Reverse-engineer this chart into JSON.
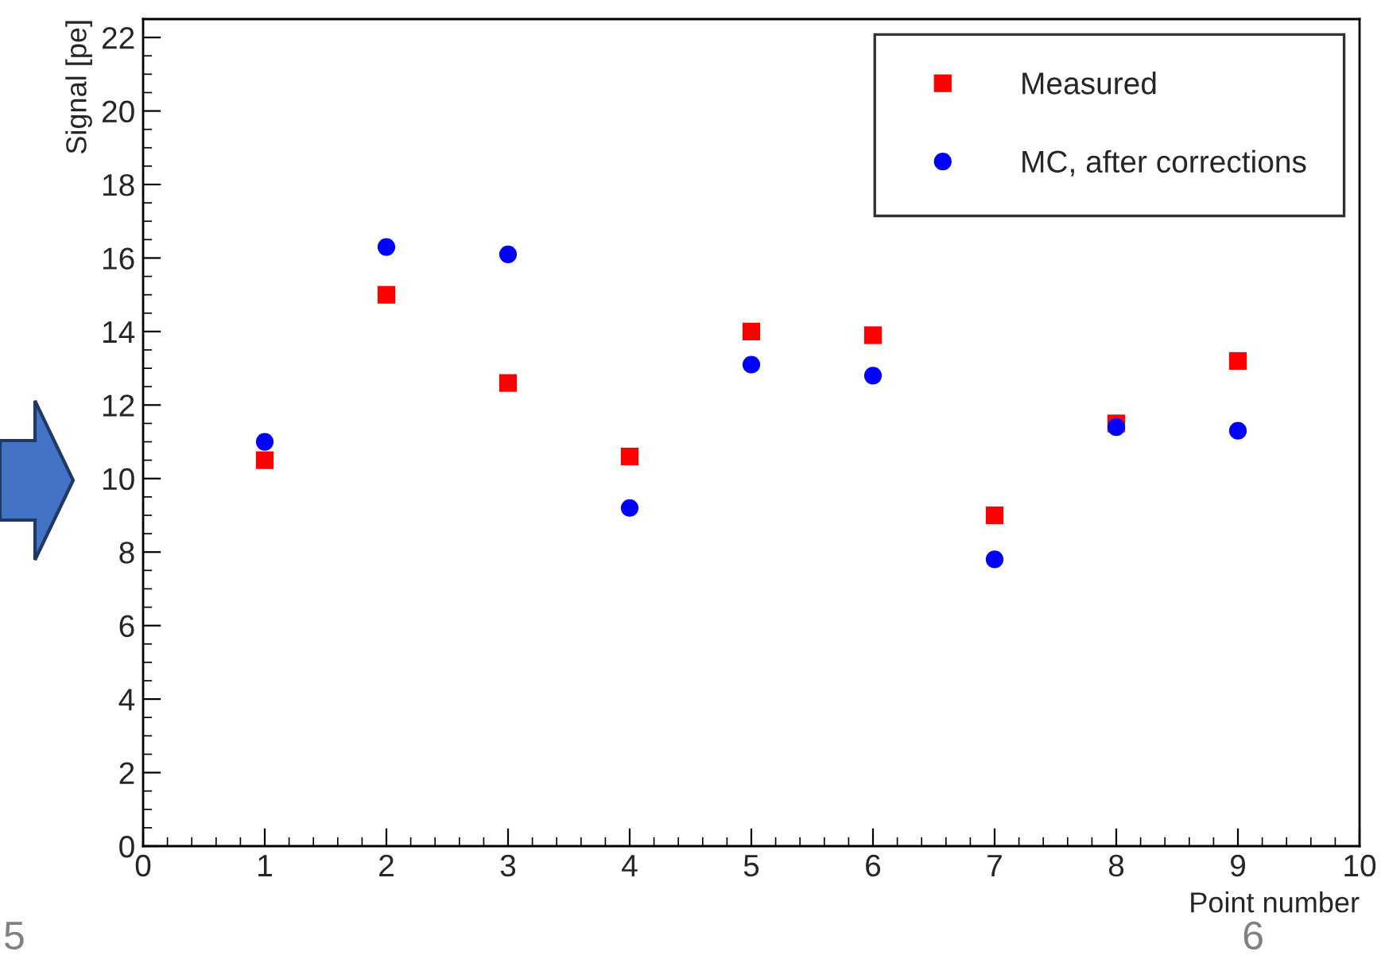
{
  "chart_data": {
    "type": "scatter",
    "xlabel": "Point number",
    "ylabel": "Signal [pe]",
    "x": [
      1,
      2,
      3,
      4,
      5,
      6,
      7,
      8,
      9
    ],
    "series": [
      {
        "name": "Measured",
        "color": "#ff0000",
        "marker": "square",
        "values": [
          10.5,
          15.0,
          12.6,
          10.6,
          14.0,
          13.9,
          9.0,
          11.5,
          13.2
        ]
      },
      {
        "name": "MC, after corrections",
        "color": "#0000ff",
        "marker": "circle",
        "values": [
          11.0,
          16.3,
          16.1,
          9.2,
          13.1,
          12.8,
          7.8,
          11.4,
          11.3
        ]
      }
    ],
    "xlim": [
      0,
      10
    ],
    "xticks": [
      0,
      1,
      2,
      3,
      4,
      5,
      6,
      7,
      8,
      9,
      10
    ],
    "ylim": [
      0,
      22.5
    ],
    "yticks": [
      0,
      2,
      4,
      6,
      8,
      10,
      12,
      14,
      16,
      18,
      20,
      22
    ],
    "grid": false,
    "legend": "top right",
    "annotations": [
      "5",
      "6"
    ]
  }
}
